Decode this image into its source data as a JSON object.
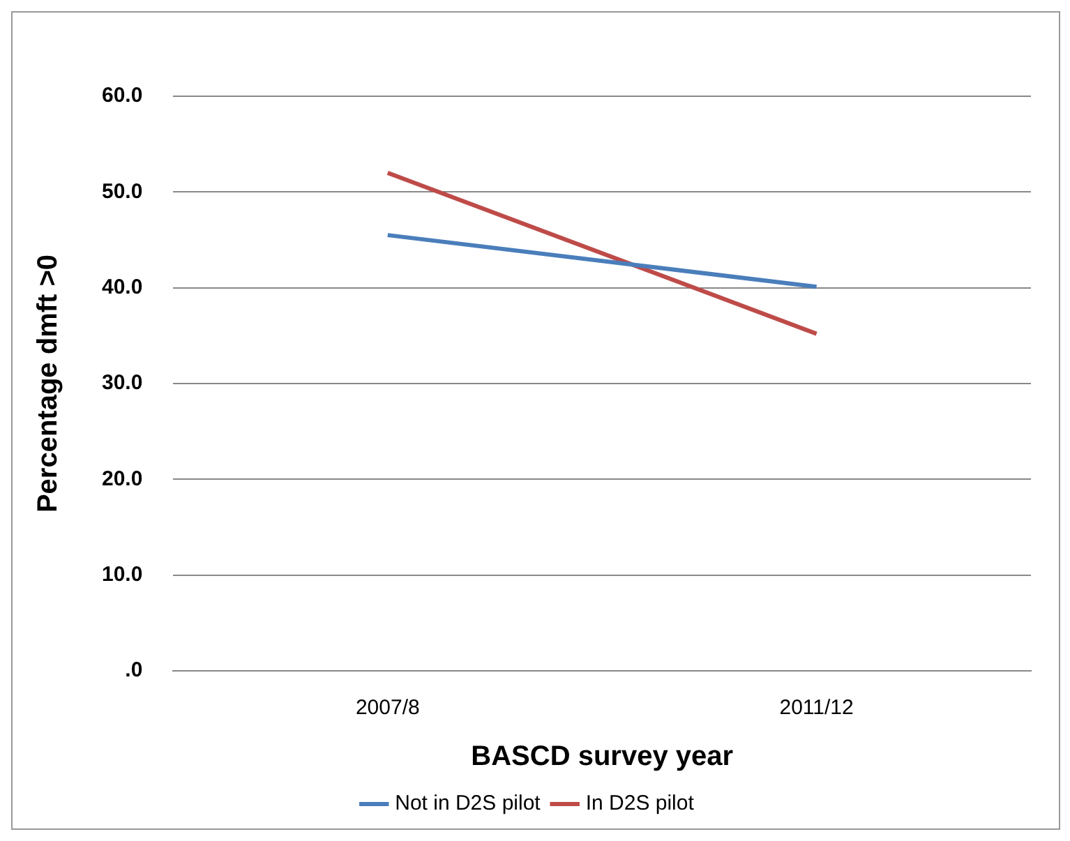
{
  "chart_data": {
    "type": "line",
    "xlabel": "BASCD survey year",
    "ylabel": "Percentage dmft >0",
    "categories": [
      "2007/8",
      "2011/12"
    ],
    "series": [
      {
        "name": "Not in D2S pilot",
        "color": "#4a7ebb",
        "values": [
          45.5,
          40.1
        ]
      },
      {
        "name": "In D2S pilot",
        "color": "#be4b48",
        "values": [
          52.0,
          35.2
        ]
      }
    ],
    "ylim": [
      0,
      60
    ],
    "yticks": [
      {
        "value": 0,
        "label": ".0"
      },
      {
        "value": 10,
        "label": "10.0"
      },
      {
        "value": 20,
        "label": "20.0"
      },
      {
        "value": 30,
        "label": "30.0"
      },
      {
        "value": 40,
        "label": "40.0"
      },
      {
        "value": 50,
        "label": "50.0"
      },
      {
        "value": 60,
        "label": "60.0"
      }
    ],
    "grid": "y",
    "legend": "bottom",
    "marker": "none",
    "line_style": "solid"
  }
}
